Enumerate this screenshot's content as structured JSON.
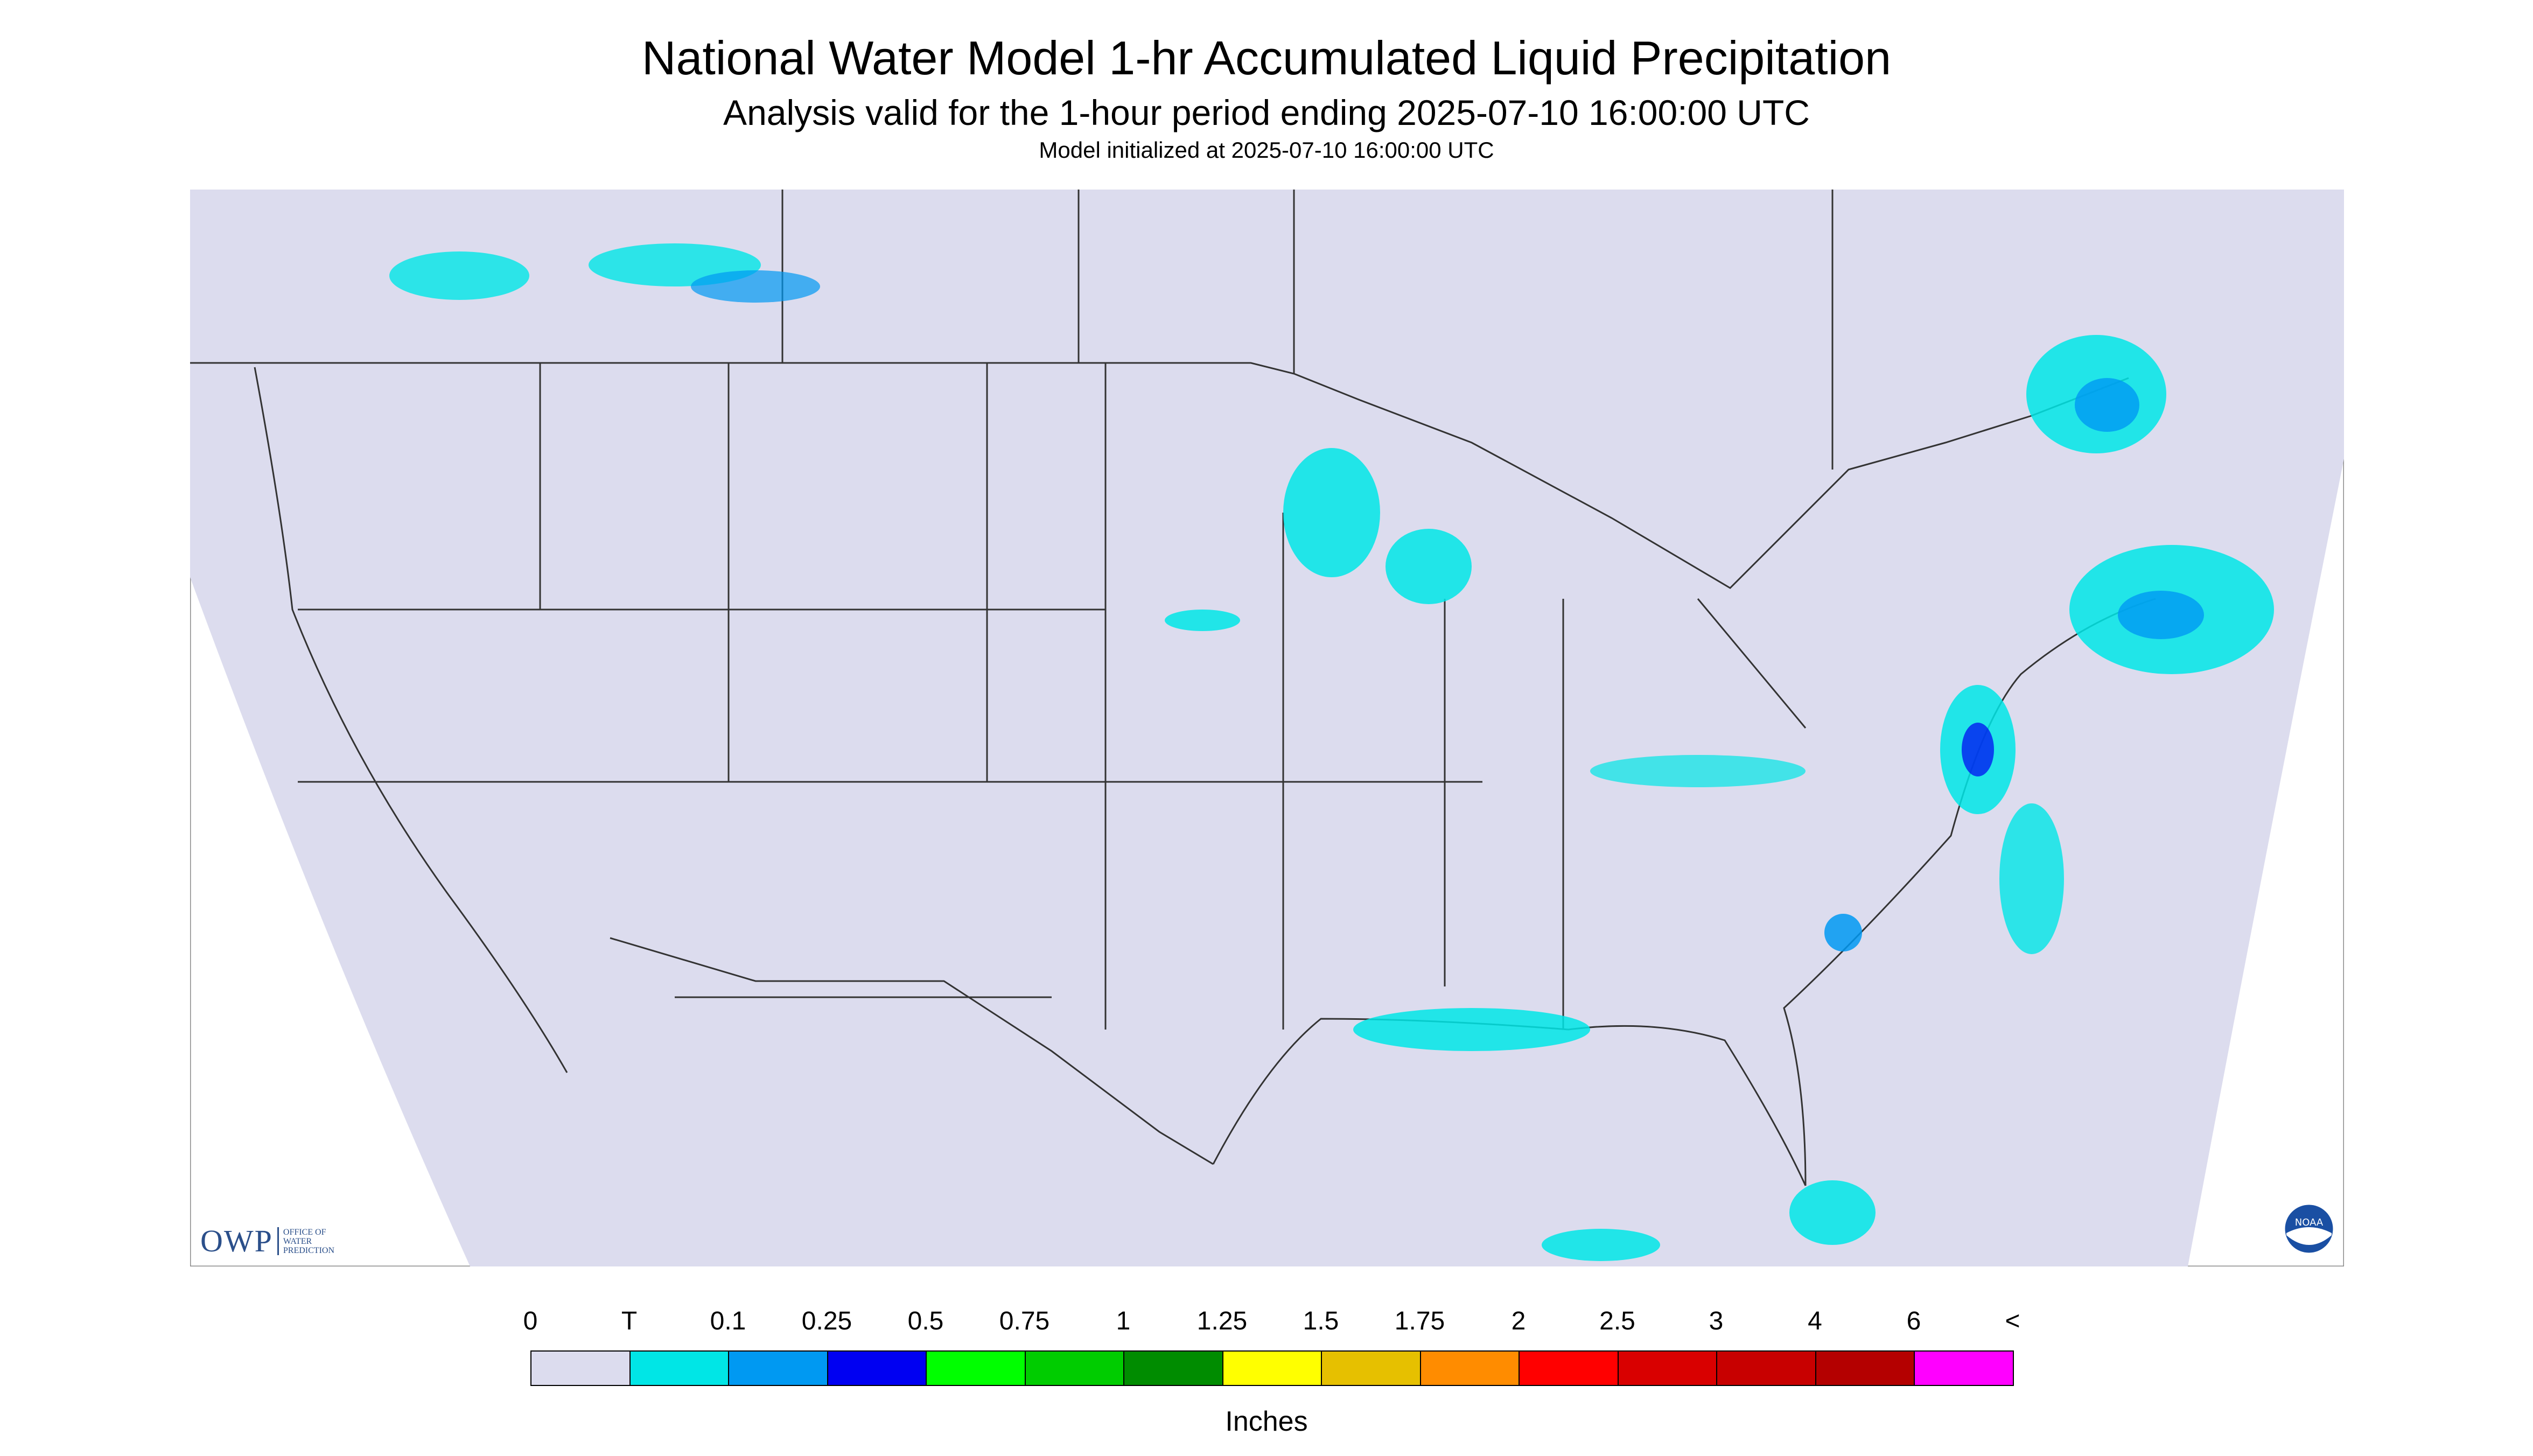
{
  "header": {
    "title": "National Water Model 1-hr Accumulated Liquid Precipitation",
    "subtitle": "Analysis valid for the 1-hour period ending 2025-07-10 16:00:00 UTC",
    "init": "Model initialized at 2025-07-10 16:00:00 UTC"
  },
  "map": {
    "background": "#dcdcee",
    "boundary_color": "#333333",
    "outside_color": "#ffffff",
    "precip_light": "#00e6e6",
    "precip_medium": "#0099f2"
  },
  "logo": {
    "mark": "OWP",
    "subtext": "OFFICE OF\nWATER\nPREDICTION",
    "noaa": "NOAA"
  },
  "legend": {
    "labels": [
      "0",
      "T",
      "0.1",
      "0.25",
      "0.5",
      "0.75",
      "1",
      "1.25",
      "1.5",
      "1.75",
      "2",
      "2.5",
      "3",
      "4",
      "6",
      "<"
    ],
    "colors": [
      "#dcdcee",
      "#00e6e6",
      "#0099f2",
      "#0000f2",
      "#00ff00",
      "#00cc00",
      "#008c00",
      "#ffff00",
      "#e6c000",
      "#ff8c00",
      "#ff0000",
      "#d90000",
      "#c80000",
      "#b40000",
      "#ff00ff",
      "#9b59c8"
    ],
    "units": "Inches"
  }
}
